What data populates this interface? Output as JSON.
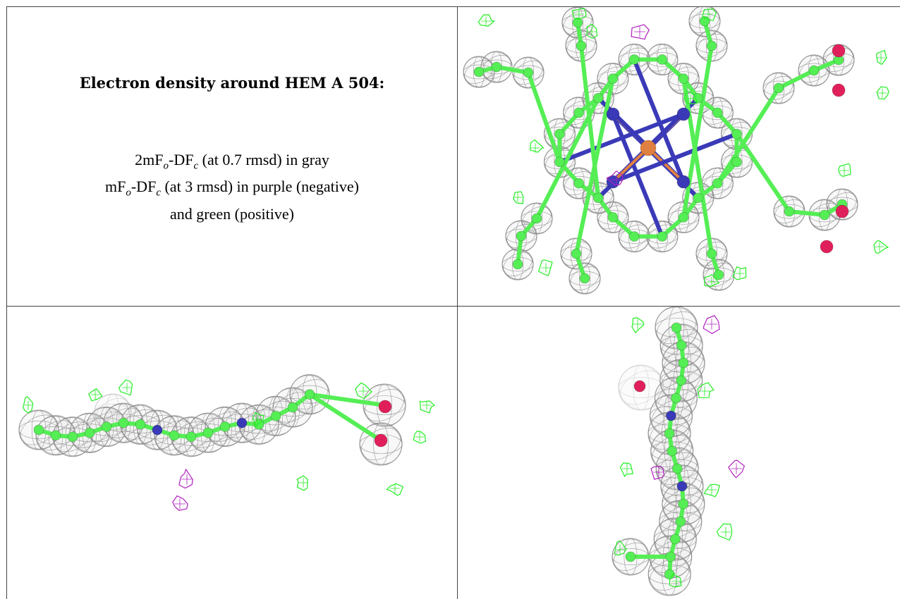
{
  "title": "Electron density around HEM A 504:",
  "legend": {
    "line1": {
      "p1": "2mF",
      "s1": "o",
      "p2": "-DF",
      "s2": "c",
      "p3": " (at 0.7 rmsd) in gray"
    },
    "line2": {
      "p1": "mF",
      "s1": "o",
      "p2": "-DF",
      "s2": "c",
      "p3": " (at 3 rmsd) in purple (negative)"
    },
    "line3": "and green (positive)"
  },
  "colors": {
    "mesh_2fofc": "#8a8a8a",
    "positive_difference": "#22ee22",
    "negative_difference": "#b020c0",
    "carbon": "#55ee55",
    "nitrogen": "#3a3ab8",
    "oxygen": "#e0205a",
    "iron": "#e08040"
  }
}
